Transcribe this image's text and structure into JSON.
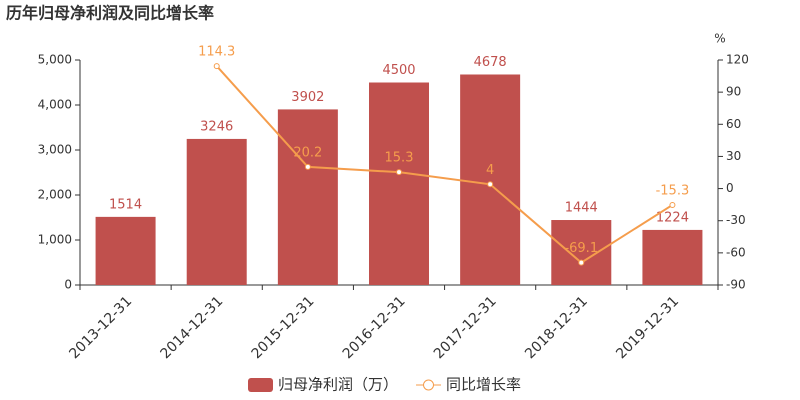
{
  "chart_data": {
    "type": "bar-line",
    "title": "历年归母净利润及同比增长率",
    "categories": [
      "2013-12-31",
      "2014-12-31",
      "2015-12-31",
      "2016-12-31",
      "2017-12-31",
      "2018-12-31",
      "2019-12-31"
    ],
    "series": [
      {
        "name": "归母净利润（万）",
        "type": "bar",
        "color": "#c0504d",
        "values": [
          1514,
          3246,
          3902,
          4500,
          4678,
          1444,
          1224
        ]
      },
      {
        "name": "同比增长率",
        "type": "line",
        "axis": "y2",
        "color": "#f59d4c",
        "values": [
          null,
          114.3,
          20.2,
          15.3,
          4,
          -69.1,
          -15.3
        ]
      }
    ],
    "ylim": [
      0,
      5000
    ],
    "yticks": [
      0,
      {
        "value": 1000,
        "label": "1,000"
      },
      {
        "value": 2000,
        "label": "2,000"
      },
      {
        "value": 3000,
        "label": "3,000"
      },
      {
        "value": 4000,
        "label": "4,000"
      },
      {
        "value": 5000,
        "label": "5,000"
      }
    ],
    "y2label": "%",
    "y2lim": [
      -90,
      120
    ],
    "y2ticks": [
      -90,
      -60,
      -30,
      0,
      30,
      60,
      90,
      120
    ],
    "legend": "bottom"
  }
}
